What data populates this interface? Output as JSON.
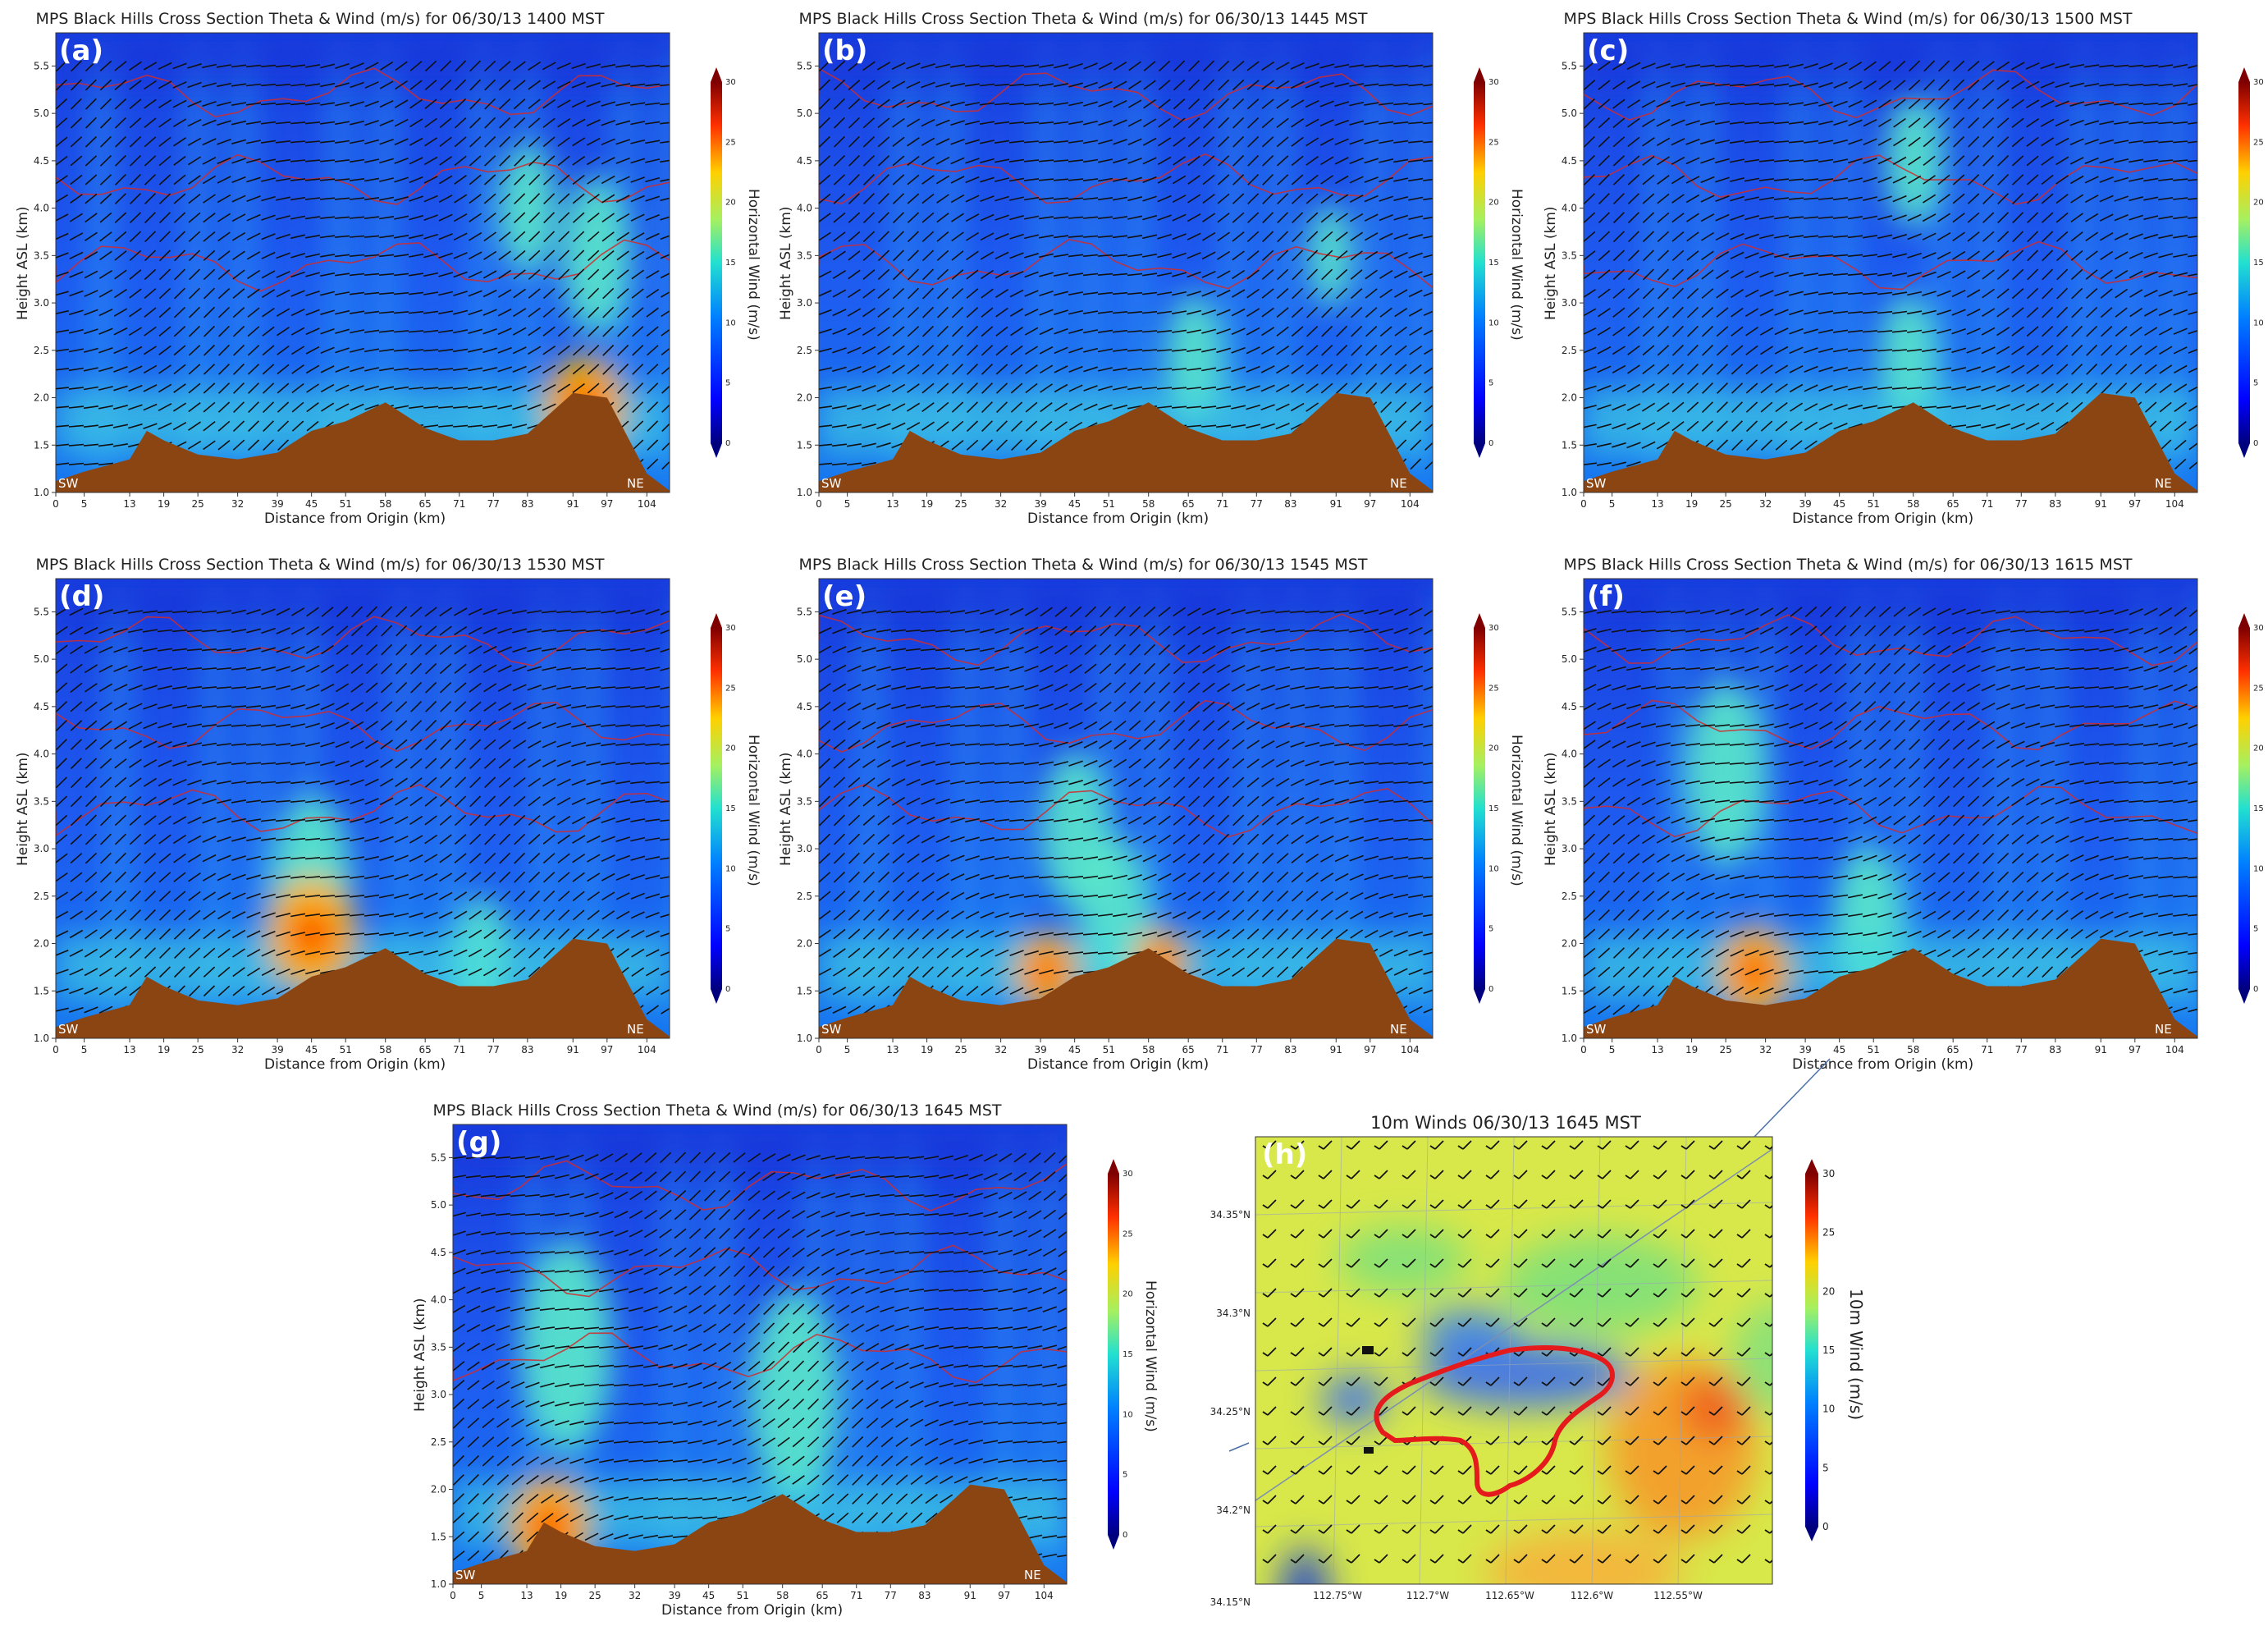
{
  "figure": {
    "panels": [
      {
        "id": "a",
        "label": "(a)",
        "title": "MPS Black Hills Cross Section Theta & Wind (m/s) for 06/30/13 1400 MST",
        "hot": [
          [
            93,
            1.9,
            0.9
          ]
        ],
        "jet": [
          [
            83,
            4.0,
            0.5
          ],
          [
            95,
            3.5,
            0.6
          ]
        ]
      },
      {
        "id": "b",
        "label": "(b)",
        "title": "MPS Black Hills Cross Section Theta & Wind (m/s) for 06/30/13 1445 MST",
        "hot": [],
        "jet": [
          [
            66,
            2.4,
            0.5
          ],
          [
            90,
            3.5,
            0.4
          ]
        ]
      },
      {
        "id": "c",
        "label": "(c)",
        "title": "MPS Black Hills Cross Section Theta & Wind (m/s) for 06/30/13 1500 MST",
        "hot": [],
        "jet": [
          [
            57,
            2.4,
            0.5
          ],
          [
            58,
            4.5,
            0.5
          ]
        ]
      },
      {
        "id": "d",
        "label": "(d)",
        "title": "MPS Black Hills Cross Section Theta & Wind (m/s) for 06/30/13 1530 MST",
        "hot": [
          [
            45,
            2.1,
            1.0
          ]
        ],
        "jet": [
          [
            45,
            2.6,
            0.7
          ],
          [
            75,
            1.8,
            0.5
          ]
        ]
      },
      {
        "id": "e",
        "label": "(e)",
        "title": "MPS Black Hills Cross Section Theta & Wind (m/s) for 06/30/13 1545 MST",
        "hot": [
          [
            40,
            1.7,
            0.7
          ],
          [
            60,
            1.8,
            0.6
          ]
        ],
        "jet": [
          [
            45,
            3.2,
            0.6
          ],
          [
            52,
            2.3,
            0.6
          ]
        ]
      },
      {
        "id": "f",
        "label": "(f)",
        "title": "MPS Black Hills Cross Section Theta & Wind (m/s) for 06/30/13 1615 MST",
        "hot": [
          [
            30,
            1.7,
            0.8
          ]
        ],
        "jet": [
          [
            25,
            3.8,
            0.7
          ],
          [
            50,
            2.2,
            0.6
          ]
        ]
      },
      {
        "id": "g",
        "label": "(g)",
        "title": "MPS Black Hills Cross Section Theta & Wind (m/s) for 06/30/13 1645 MST",
        "hot": [
          [
            17,
            1.6,
            0.9
          ]
        ],
        "jet": [
          [
            20,
            3.5,
            0.8
          ],
          [
            60,
            3.0,
            0.8
          ]
        ]
      }
    ],
    "cross_section": {
      "xlabel": "Distance from Origin (km)",
      "ylabel": "Height ASL (km)",
      "cbar_label": "Horizontal Wind (m/s)",
      "left_tag": "SW",
      "right_tag": "NE",
      "x_ticks": [
        "0",
        "5",
        "13",
        "19",
        "25",
        "32",
        "39",
        "45",
        "51",
        "58",
        "65",
        "71",
        "77",
        "83",
        "91",
        "97",
        "104"
      ],
      "y_ticks": [
        "1.0",
        "1.5",
        "2.0",
        "2.5",
        "3.0",
        "3.5",
        "4.0",
        "4.5",
        "5.0",
        "5.5"
      ],
      "cbar_ticks": [
        "0",
        "5",
        "10",
        "15",
        "20",
        "25",
        "30"
      ]
    },
    "map": {
      "label": "(h)",
      "title": "10m Winds 06/30/13 1645 MST",
      "cbar_label": "10m Wind (m/s)",
      "lat_ticks": [
        "34.35°N",
        "34.3°N",
        "34.25°N",
        "34.2°N",
        "34.15°N"
      ],
      "lon_ticks": [
        "112.75°W",
        "112.7°W",
        "112.65°W",
        "112.6°W",
        "112.55°W"
      ],
      "cbar_ticks": [
        "0",
        "5",
        "10",
        "15",
        "20",
        "25",
        "30"
      ]
    }
  },
  "chart_data": [
    {
      "type": "heatmap",
      "panel": "a",
      "title": "MPS Black Hills Cross Section Theta & Wind (m/s) for 06/30/13 1400 MST",
      "xlabel": "Distance from Origin (km)",
      "ylabel": "Height ASL (km)",
      "xlim": [
        0,
        108
      ],
      "ylim": [
        1.0,
        5.85
      ],
      "colorbar": {
        "label": "Horizontal Wind (m/s)",
        "range": [
          0,
          30
        ]
      },
      "terrain_km": [
        [
          0,
          1.12
        ],
        [
          5,
          1.22
        ],
        [
          13,
          1.35
        ],
        [
          16,
          1.65
        ],
        [
          19,
          1.55
        ],
        [
          25,
          1.4
        ],
        [
          32,
          1.35
        ],
        [
          39,
          1.42
        ],
        [
          45,
          1.65
        ],
        [
          51,
          1.75
        ],
        [
          58,
          1.95
        ],
        [
          65,
          1.68
        ],
        [
          71,
          1.55
        ],
        [
          77,
          1.55
        ],
        [
          83,
          1.62
        ],
        [
          91,
          2.05
        ],
        [
          97,
          2.0
        ],
        [
          104,
          1.2
        ],
        [
          108,
          1.02
        ]
      ],
      "annotations": [
        "SW",
        "NE"
      ]
    },
    {
      "type": "heatmap",
      "panel": "b",
      "title": "MPS Black Hills Cross Section Theta & Wind (m/s) for 06/30/13 1445 MST",
      "xlabel": "Distance from Origin (km)",
      "ylabel": "Height ASL (km)",
      "xlim": [
        0,
        108
      ],
      "ylim": [
        1.0,
        5.85
      ],
      "colorbar": {
        "label": "Horizontal Wind (m/s)",
        "range": [
          0,
          30
        ]
      },
      "annotations": [
        "SW",
        "NE"
      ]
    },
    {
      "type": "heatmap",
      "panel": "c",
      "title": "MPS Black Hills Cross Section Theta & Wind (m/s) for 06/30/13 1500 MST",
      "xlabel": "Distance from Origin (km)",
      "ylabel": "Height ASL (km)",
      "xlim": [
        0,
        108
      ],
      "ylim": [
        1.0,
        5.85
      ],
      "colorbar": {
        "label": "Horizontal Wind (m/s)",
        "range": [
          0,
          30
        ]
      },
      "annotations": [
        "SW",
        "NE"
      ]
    },
    {
      "type": "heatmap",
      "panel": "d",
      "title": "MPS Black Hills Cross Section Theta & Wind (m/s) for 06/30/13 1530 MST",
      "xlabel": "Distance from Origin (km)",
      "ylabel": "Height ASL (km)",
      "xlim": [
        0,
        108
      ],
      "ylim": [
        1.0,
        5.85
      ],
      "colorbar": {
        "label": "Horizontal Wind (m/s)",
        "range": [
          0,
          30
        ]
      },
      "annotations": [
        "SW",
        "NE"
      ]
    },
    {
      "type": "heatmap",
      "panel": "e",
      "title": "MPS Black Hills Cross Section Theta & Wind (m/s) for 06/30/13 1545 MST",
      "xlabel": "Distance from Origin (km)",
      "ylabel": "Height ASL (km)",
      "xlim": [
        0,
        108
      ],
      "ylim": [
        1.0,
        5.85
      ],
      "colorbar": {
        "label": "Horizontal Wind (m/s)",
        "range": [
          0,
          30
        ]
      },
      "annotations": [
        "SW",
        "NE"
      ]
    },
    {
      "type": "heatmap",
      "panel": "f",
      "title": "MPS Black Hills Cross Section Theta & Wind (m/s) for 06/30/13 1615 MST",
      "xlabel": "Distance from Origin (km)",
      "ylabel": "Height ASL (km)",
      "xlim": [
        0,
        108
      ],
      "ylim": [
        1.0,
        5.85
      ],
      "colorbar": {
        "label": "Horizontal Wind (m/s)",
        "range": [
          0,
          30
        ]
      },
      "annotations": [
        "SW",
        "NE"
      ]
    },
    {
      "type": "heatmap",
      "panel": "g",
      "title": "MPS Black Hills Cross Section Theta & Wind (m/s) for 06/30/13 1645 MST",
      "xlabel": "Distance from Origin (km)",
      "ylabel": "Height ASL (km)",
      "xlim": [
        0,
        108
      ],
      "ylim": [
        1.0,
        5.85
      ],
      "colorbar": {
        "label": "Horizontal Wind (m/s)",
        "range": [
          0,
          30
        ]
      },
      "annotations": [
        "SW",
        "NE"
      ]
    },
    {
      "type": "heatmap",
      "panel": "h",
      "title": "10m Winds 06/30/13 1645 MST",
      "xlim": [
        -112.79,
        -112.52
      ],
      "ylim": [
        34.14,
        34.37
      ],
      "colorbar": {
        "label": "10m Wind (m/s)",
        "range": [
          0,
          30
        ]
      },
      "fire_perimeter_color": "#e41a1c"
    }
  ]
}
